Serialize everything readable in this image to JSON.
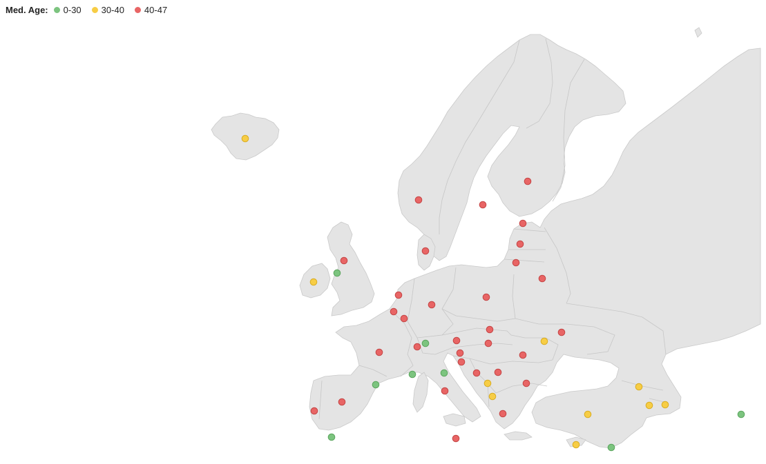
{
  "legend": {
    "title": "Med. Age:",
    "items": [
      {
        "label": "0-30",
        "color": "#7cc47f",
        "stroke": "#5aa55d"
      },
      {
        "label": "30-40",
        "color": "#f7cd45",
        "stroke": "#d8ac22"
      },
      {
        "label": "40-47",
        "color": "#e86565",
        "stroke": "#c44444"
      }
    ]
  },
  "map": {
    "land_color": "#e4e4e4",
    "border_color": "#c6c6c6",
    "markers": [
      {
        "name": "iceland",
        "group": 1
      },
      {
        "name": "norway",
        "group": 2
      },
      {
        "name": "sweden",
        "group": 2
      },
      {
        "name": "finland",
        "group": 2
      },
      {
        "name": "estonia",
        "group": 2
      },
      {
        "name": "latvia",
        "group": 2
      },
      {
        "name": "lithuania",
        "group": 2
      },
      {
        "name": "denmark",
        "group": 2
      },
      {
        "name": "united-kingdom",
        "group": 2
      },
      {
        "name": "isle-of-man",
        "group": 0
      },
      {
        "name": "ireland",
        "group": 1
      },
      {
        "name": "netherlands",
        "group": 2
      },
      {
        "name": "belgium",
        "group": 2
      },
      {
        "name": "luxembourg",
        "group": 2
      },
      {
        "name": "germany",
        "group": 2
      },
      {
        "name": "poland",
        "group": 2
      },
      {
        "name": "belarus",
        "group": 2
      },
      {
        "name": "ukraine",
        "group": 2
      },
      {
        "name": "czechia",
        "group": 2
      },
      {
        "name": "slovakia",
        "group": 2
      },
      {
        "name": "moldova",
        "group": 1
      },
      {
        "name": "hungary",
        "group": 2
      },
      {
        "name": "austria",
        "group": 2
      },
      {
        "name": "liechtenstein",
        "group": 0
      },
      {
        "name": "switzerland",
        "group": 2
      },
      {
        "name": "slovenia",
        "group": 2
      },
      {
        "name": "croatia",
        "group": 2
      },
      {
        "name": "romania",
        "group": 2
      },
      {
        "name": "france",
        "group": 2
      },
      {
        "name": "monaco",
        "group": 0
      },
      {
        "name": "san-marino",
        "group": 0
      },
      {
        "name": "andorra",
        "group": 0
      },
      {
        "name": "bosnia",
        "group": 2
      },
      {
        "name": "serbia",
        "group": 2
      },
      {
        "name": "montenegro",
        "group": 1
      },
      {
        "name": "kosovo",
        "group": 1
      },
      {
        "name": "bulgaria",
        "group": 2
      },
      {
        "name": "italy",
        "group": 2
      },
      {
        "name": "albania",
        "group": 1
      },
      {
        "name": "greece",
        "group": 2
      },
      {
        "name": "georgia",
        "group": 1
      },
      {
        "name": "armenia",
        "group": 1
      },
      {
        "name": "azerbaijan",
        "group": 1
      },
      {
        "name": "turkey",
        "group": 1
      },
      {
        "name": "spain",
        "group": 2
      },
      {
        "name": "portugal",
        "group": 2
      },
      {
        "name": "gibraltar",
        "group": 0
      },
      {
        "name": "malta",
        "group": 2
      },
      {
        "name": "cyprus",
        "group": 1
      },
      {
        "name": "israel-area",
        "group": 0
      },
      {
        "name": "kazakhstan-area",
        "group": 0
      }
    ]
  }
}
